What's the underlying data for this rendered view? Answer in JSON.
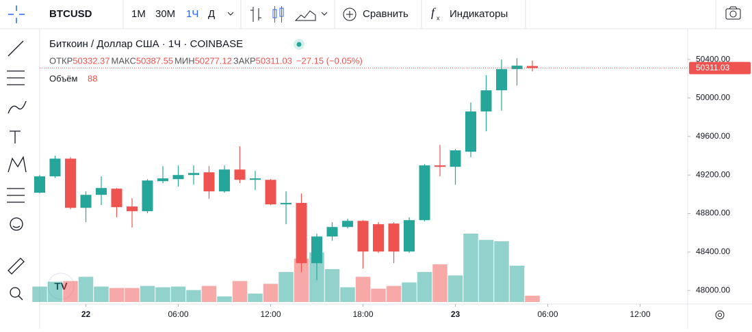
{
  "toolbar": {
    "symbol": "BTCUSD",
    "intervals": [
      "1М",
      "30М",
      "1Ч",
      "Д"
    ],
    "compare": "Сравнить",
    "indicators": "Индикаторы"
  },
  "chart_data": {
    "type": "candlestick",
    "title": "Биткоин / Доллар США · 1Ч · COINBASE",
    "legend": {
      "open_label": "ОТКР",
      "high_label": "МАКС",
      "low_label": "МИН",
      "close_label": "ЗАКР",
      "change": "−27.15 (−0.05%)",
      "volume_label": "Объём"
    },
    "categories": [
      null,
      null,
      null,
      "22",
      null,
      null,
      null,
      null,
      null,
      "06:00",
      null,
      null,
      null,
      null,
      null,
      "12:00",
      null,
      null,
      null,
      null,
      null,
      "18:00",
      null,
      null,
      null,
      null,
      null,
      "23",
      null,
      null,
      null,
      null,
      null,
      "06:00",
      null,
      null,
      null,
      null,
      null,
      "12:00",
      null,
      null,
      null
    ],
    "open": [
      49016,
      49186,
      49370,
      48859,
      48994,
      49058,
      48873,
      48824,
      49136,
      49157,
      49200,
      49228,
      49030,
      49257,
      49150,
      49150,
      48895,
      48910,
      48284,
      48561,
      48660,
      48724,
      48689,
      48696,
      48405,
      48731,
      49300,
      49285,
      49442,
      49860,
      50080,
      50300,
      50332.37,
      null,
      null,
      null,
      null,
      null,
      null,
      null,
      null,
      null,
      null
    ],
    "high": [
      49200,
      49400,
      49385,
      49030,
      49186,
      49065,
      48959,
      49157,
      49292,
      49300,
      49300,
      49292,
      49300,
      49498,
      49243,
      49157,
      49030,
      49008,
      48590,
      48710,
      48746,
      48731,
      48710,
      48710,
      48760,
      49314,
      49513,
      49470,
      49953,
      50237,
      50400,
      50414,
      50387.55,
      null,
      null,
      null,
      null,
      null,
      null,
      null,
      null,
      null,
      null
    ],
    "low": [
      49010,
      49170,
      48845,
      48710,
      48888,
      48760,
      48654,
      48803,
      49115,
      49080,
      49100,
      48952,
      49016,
      49115,
      49044,
      48888,
      48689,
      48192,
      48107,
      48518,
      48646,
      48227,
      48390,
      48284,
      48390,
      48717,
      49186,
      49100,
      49385,
      49654,
      49868,
      50130,
      50277.12,
      null,
      null,
      null,
      null,
      null,
      null,
      null,
      null,
      null,
      null
    ],
    "close": [
      49186,
      49370,
      48859,
      48994,
      49065,
      48866,
      48824,
      49143,
      49165,
      49200,
      49221,
      49030,
      49257,
      49150,
      49165,
      48895,
      48910,
      48284,
      48561,
      48660,
      48724,
      48405,
      48405,
      48405,
      48731,
      49300,
      49285,
      49456,
      49860,
      50080,
      50300,
      50336,
      50311.03,
      null,
      null,
      null,
      null,
      null,
      null,
      null,
      null,
      null,
      null
    ],
    "volume": [
      216,
      284,
      294,
      353,
      216,
      196,
      196,
      225,
      206,
      216,
      167,
      225,
      78,
      294,
      118,
      255,
      421,
      608,
      696,
      461,
      206,
      353,
      186,
      225,
      274,
      421,
      529,
      372,
      960,
      872,
      853,
      510,
      88,
      null,
      null,
      null,
      null,
      null,
      null,
      null,
      null,
      null,
      null
    ],
    "up_color": "#26a69a",
    "down_color": "#ef5350",
    "ylim": [
      47860,
      50720
    ],
    "yticks": [
      {
        "value": 48000,
        "label": "48000.00"
      },
      {
        "value": 48400,
        "label": "48400.00"
      },
      {
        "value": 48800,
        "label": "48800.00"
      },
      {
        "value": 49200,
        "label": "49200.00"
      },
      {
        "value": 49600,
        "label": "49600.00"
      },
      {
        "value": 50000,
        "label": "50000.00"
      },
      {
        "value": 50400,
        "label": "50400.00"
      }
    ]
  }
}
